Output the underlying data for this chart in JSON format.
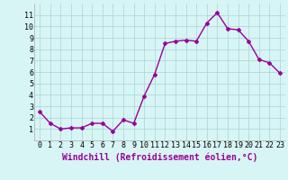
{
  "x": [
    0,
    1,
    2,
    3,
    4,
    5,
    6,
    7,
    8,
    9,
    10,
    11,
    12,
    13,
    14,
    15,
    16,
    17,
    18,
    19,
    20,
    21,
    22,
    23
  ],
  "y": [
    2.5,
    1.5,
    1.0,
    1.1,
    1.1,
    1.5,
    1.5,
    0.8,
    1.8,
    1.5,
    3.9,
    5.8,
    8.5,
    8.7,
    8.8,
    8.7,
    10.3,
    11.2,
    9.8,
    9.7,
    8.7,
    7.1,
    6.8,
    5.9
  ],
  "line_color": "#990099",
  "marker": "D",
  "marker_size": 2,
  "background_color": "#d8f5f5",
  "grid_color": "#b0d8d8",
  "xlabel": "Windchill (Refroidissement éolien,°C)",
  "xlabel_fontsize": 7,
  "ylim": [
    0,
    12
  ],
  "xlim": [
    -0.5,
    23.5
  ],
  "yticks": [
    1,
    2,
    3,
    4,
    5,
    6,
    7,
    8,
    9,
    10,
    11
  ],
  "xticks": [
    0,
    1,
    2,
    3,
    4,
    5,
    6,
    7,
    8,
    9,
    10,
    11,
    12,
    13,
    14,
    15,
    16,
    17,
    18,
    19,
    20,
    21,
    22,
    23
  ],
  "tick_fontsize": 6,
  "line_width": 1.0
}
